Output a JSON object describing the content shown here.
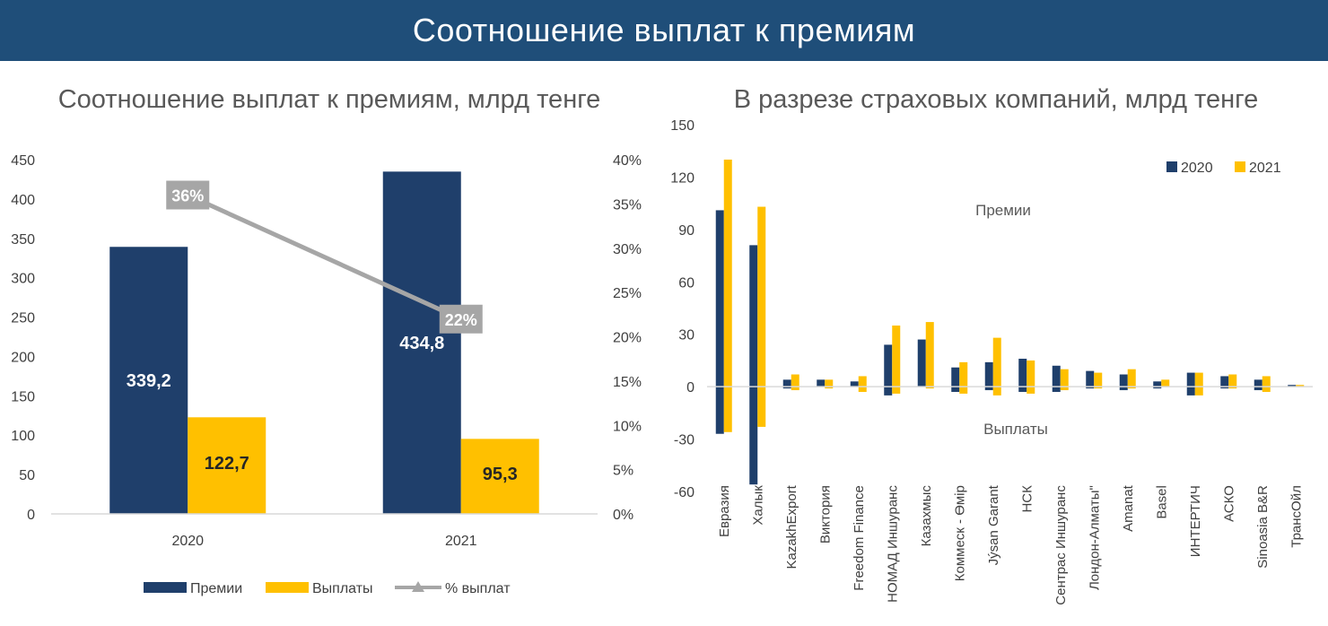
{
  "header": {
    "title": "Соотношение выплат к премиям"
  },
  "colors": {
    "banner": "#1f4e79",
    "premiums": "#1f3f6b",
    "payouts": "#ffc000",
    "ratio_line": "#a6a6a6"
  },
  "chart_data": [
    {
      "type": "bar",
      "title": "Соотношение выплат к премиям, млрд тенге",
      "categories": [
        "2020",
        "2021"
      ],
      "series": [
        {
          "name": "Премии",
          "values": [
            339.2,
            434.8
          ],
          "labels": [
            "339,2",
            "434,8"
          ],
          "color": "#1f3f6b"
        },
        {
          "name": "Выплаты",
          "values": [
            122.7,
            95.3
          ],
          "labels": [
            "122,7",
            "95,3"
          ],
          "color": "#ffc000"
        },
        {
          "name": "% выплат",
          "type": "line",
          "axis": "secondary",
          "values": [
            36,
            22
          ],
          "labels": [
            "36%",
            "22%"
          ],
          "color": "#a6a6a6"
        }
      ],
      "ylim": [
        0,
        450
      ],
      "yticks": [
        "0",
        "50",
        "100",
        "150",
        "200",
        "250",
        "300",
        "350",
        "400",
        "450"
      ],
      "y2lim": [
        0,
        40
      ],
      "y2ticks": [
        "0%",
        "5%",
        "10%",
        "15%",
        "20%",
        "25%",
        "30%",
        "35%",
        "40%"
      ],
      "legend_position": "bottom",
      "grid": false
    },
    {
      "type": "bar",
      "title": "В разрезе страховых компаний, млрд тенге",
      "categories": [
        "Евразия",
        "Халык",
        "KazakhExport",
        "Виктория",
        "Freedom Finance",
        "НОМАД Иншуранс",
        "Казахмыс",
        "Коммеск - Өмір",
        "Jýsan Garant",
        "НСК",
        "Сентрас Иншуранс",
        "Лондон-Алматы\"",
        "Amanat",
        "Basel",
        "ИНТЕРТИЧ",
        "АСКО",
        "Sinoasia B&R",
        "ТрансОйл"
      ],
      "series": [
        {
          "name": "2020",
          "premiums": [
            101,
            81,
            4,
            4,
            3,
            24,
            27,
            11,
            14,
            16,
            12,
            9,
            7,
            3,
            8,
            6,
            4,
            1
          ],
          "payouts": [
            -27,
            -56,
            -1,
            0,
            0,
            -5,
            0,
            -3,
            -2,
            -3,
            -3,
            -1,
            -2,
            -1,
            -5,
            -1,
            -2,
            0
          ],
          "color": "#1f3f6b"
        },
        {
          "name": "2021",
          "premiums": [
            130,
            103,
            7,
            4,
            6,
            35,
            37,
            14,
            28,
            15,
            10,
            8,
            10,
            4,
            8,
            7,
            6,
            1
          ],
          "payouts": [
            -26,
            -23,
            -2,
            -1,
            -3,
            -4,
            -1,
            -4,
            -5,
            -4,
            -2,
            -1,
            -1,
            0,
            -5,
            -1,
            -3,
            0
          ],
          "color": "#ffc000"
        }
      ],
      "ylim": [
        -60,
        150
      ],
      "yticks": [
        "-60",
        "-30",
        "0",
        "30",
        "60",
        "90",
        "120",
        "150"
      ],
      "annotations": {
        "top": "Премии",
        "bottom": "Выплаты"
      },
      "legend_position": "top-right",
      "grid": false
    }
  ]
}
